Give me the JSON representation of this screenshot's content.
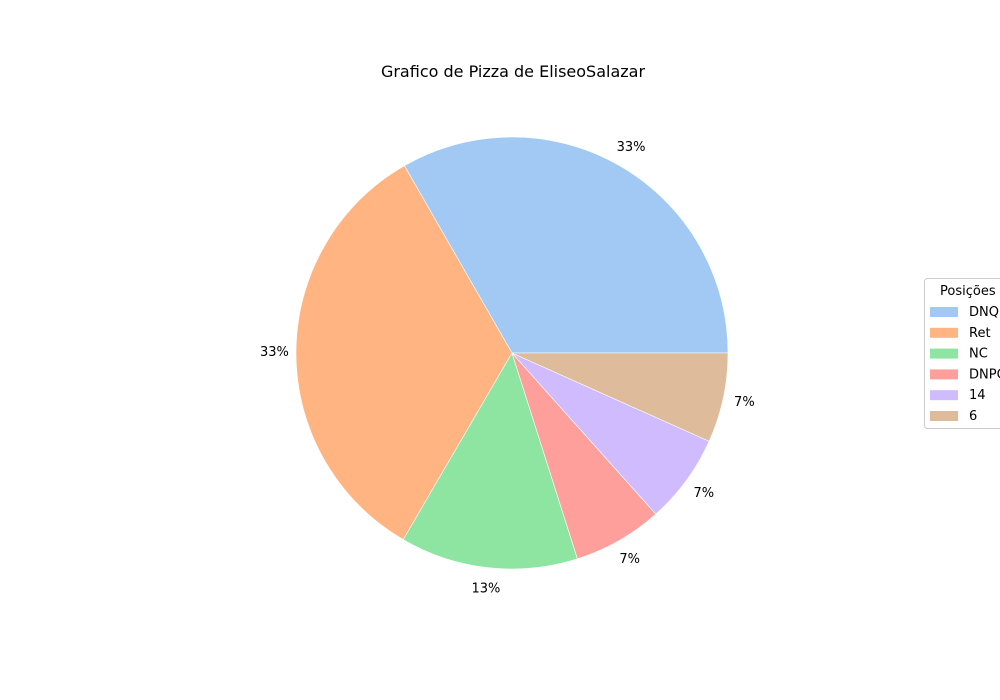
{
  "chart_data": {
    "type": "pie",
    "title": "Grafico de Pizza de EliseoSalazar",
    "categories": [
      "DNQ",
      "Ret",
      "NC",
      "DNPQ",
      "14",
      "6"
    ],
    "values": [
      33.3,
      33.3,
      13.3,
      6.7,
      6.7,
      6.7
    ],
    "labels": [
      "33%",
      "33%",
      "13%",
      "7%",
      "7%",
      "7%"
    ],
    "colors": [
      "#a1c9f4",
      "#ffb482",
      "#8de5a1",
      "#ff9f9b",
      "#d0bbff",
      "#debb9b"
    ],
    "legend": {
      "title": "Posições",
      "placement": "center-right",
      "entries": [
        "DNQ",
        "Ret",
        "NC",
        "DNPQ",
        "14",
        "6"
      ]
    },
    "start_angle_deg": 0,
    "direction": "counterclockwise"
  }
}
